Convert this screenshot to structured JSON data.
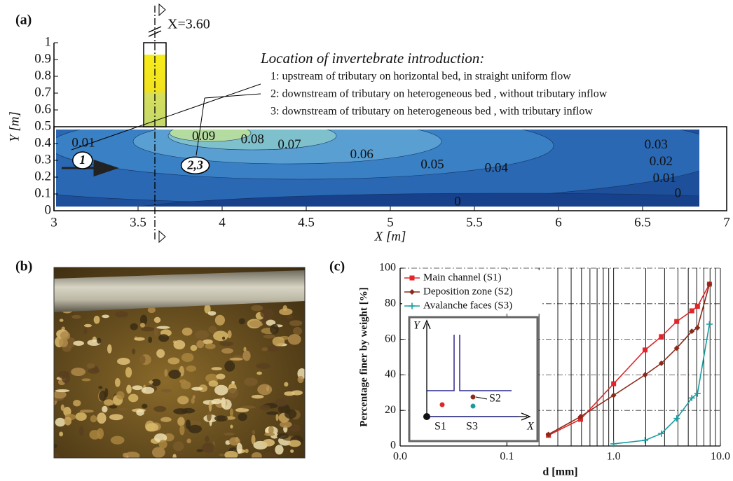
{
  "panel_labels": [
    "(a)",
    "(b)",
    "(c)"
  ],
  "chart_data": [
    {
      "type": "contour",
      "xlabel": "X [m]",
      "ylabel": "Y [m]",
      "xlim": [
        3,
        7
      ],
      "ylim": [
        0,
        1
      ],
      "xticks": [
        3,
        3.5,
        4,
        4.5,
        5,
        5.5,
        6,
        6.5,
        7
      ],
      "yticks": [
        0,
        0.1,
        0.2,
        0.3,
        0.4,
        0.5,
        0.6,
        0.7,
        0.8,
        0.9,
        1
      ],
      "section": {
        "value": 3.6,
        "label": "X=3.60"
      },
      "legend_title": "Location of invertebrate introduction:",
      "legend_items": [
        "1: upstream of tributary on horizontal bed, in straight uniform flow",
        "2: downstream of tributary on heterogeneous bed , without tributary inflow",
        "3: downstream of tributary on heterogeneous bed , with tributary inflow"
      ],
      "point_labels": [
        {
          "label": "1",
          "x": 3.17,
          "y": 0.3
        },
        {
          "label": "2,3",
          "x": 3.84,
          "y": 0.27
        }
      ],
      "contour_labels": [
        {
          "value": 0.01,
          "x": 3.175,
          "y": 0.4
        },
        {
          "value": 0.09,
          "x": 3.89,
          "y": 0.44
        },
        {
          "value": 0.08,
          "x": 4.18,
          "y": 0.42
        },
        {
          "value": 0.07,
          "x": 4.4,
          "y": 0.39
        },
        {
          "value": 0.06,
          "x": 4.83,
          "y": 0.33
        },
        {
          "value": 0.05,
          "x": 5.25,
          "y": 0.27
        },
        {
          "value": 0.04,
          "x": 5.63,
          "y": 0.25
        },
        {
          "value": 0.03,
          "x": 6.58,
          "y": 0.39
        },
        {
          "value": 0.02,
          "x": 6.61,
          "y": 0.29
        },
        {
          "value": 0.01,
          "x": 6.63,
          "y": 0.19
        },
        {
          "value": 0,
          "x": 6.71,
          "y": 0.1
        },
        {
          "value": 0,
          "x": 5.4,
          "y": 0.05
        }
      ]
    },
    {
      "type": "line",
      "xlabel": "d [mm]",
      "ylabel": "Percentage finer by weight [%]",
      "log_x": true,
      "xlim": [
        0.01,
        10
      ],
      "xticks": [
        {
          "value": 0.01,
          "label": "0.0"
        },
        0.1,
        {
          "value": 1,
          "label": "1.0"
        },
        {
          "value": 10,
          "label": "10.0"
        }
      ],
      "ylim": [
        0,
        100
      ],
      "yticks": [
        0,
        20,
        40,
        60,
        80,
        100
      ],
      "grid": true,
      "legend": "upper left",
      "series": [
        {
          "name": "Main channel (S1)",
          "color": "#e0262a",
          "marker": "square",
          "x": [
            0.245,
            0.49,
            1.0,
            1.97,
            2.8,
            3.9,
            5.4,
            6.1,
            7.9
          ],
          "values": [
            6,
            15,
            35,
            54,
            61.5,
            70,
            76,
            78.5,
            91
          ]
        },
        {
          "name": "Deposition zone (S2)",
          "color": "#8b2a1a",
          "marker": "diamond",
          "x": [
            0.245,
            0.49,
            1.0,
            1.97,
            2.8,
            3.9,
            5.4,
            6.1,
            7.9
          ],
          "values": [
            6.5,
            16.5,
            28.5,
            40,
            46.5,
            55,
            64.5,
            66.5,
            91
          ]
        },
        {
          "name": "Avalanche faces (S3)",
          "color": "#1a9ba0",
          "marker": "plus",
          "x": [
            1.0,
            1.97,
            2.8,
            3.9,
            5.4,
            6.1,
            7.9
          ],
          "values": [
            1.2,
            3.2,
            7,
            15.5,
            27,
            29.5,
            68.5
          ]
        }
      ],
      "inset": {
        "x_label": "X",
        "y_label": "Y",
        "labels": [
          "S1",
          "S2",
          "S3"
        ]
      }
    }
  ]
}
